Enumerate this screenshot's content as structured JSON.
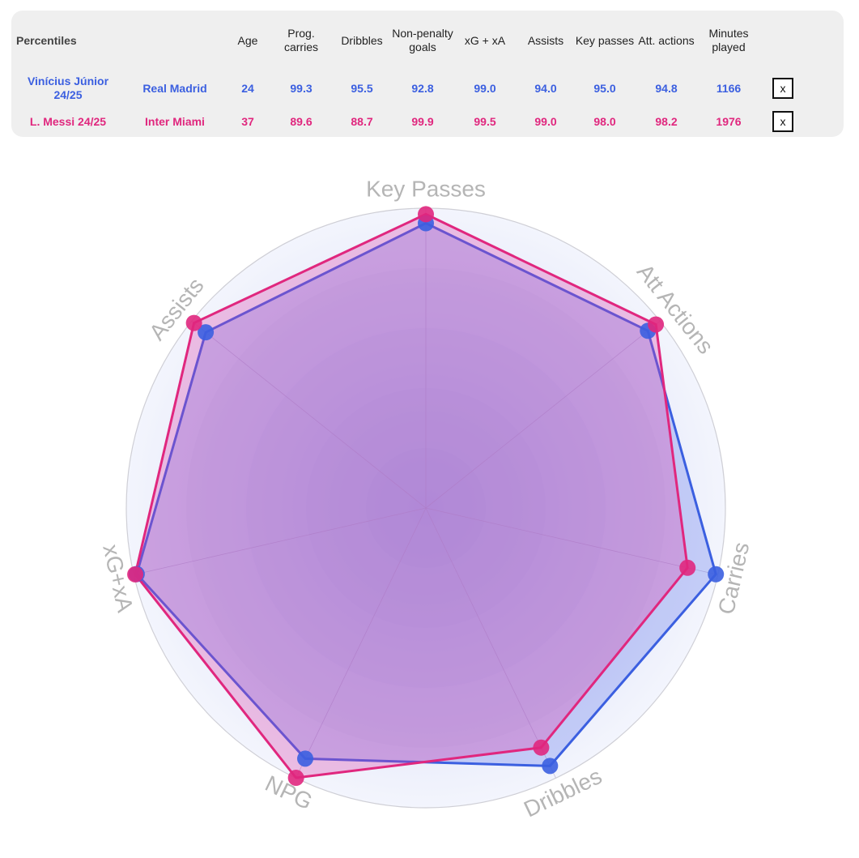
{
  "table": {
    "headers": [
      "Percentiles",
      "",
      "Age",
      "Prog. carries",
      "Dribbles",
      "Non-penalty goals",
      "xG + xA",
      "Assists",
      "Key passes",
      "Att. actions",
      "Minutes played"
    ],
    "rows": [
      {
        "player": "Vinícius Júnior 24/25",
        "club": "Real Madrid",
        "values": [
          "24",
          "99.3",
          "95.5",
          "92.8",
          "99.0",
          "94.0",
          "95.0",
          "94.8",
          "1166"
        ],
        "remove_label": "x"
      },
      {
        "player": "L. Messi 24/25",
        "club": "Inter Miami",
        "values": [
          "37",
          "89.6",
          "88.7",
          "99.9",
          "99.5",
          "99.0",
          "98.0",
          "98.2",
          "1976"
        ],
        "remove_label": "x"
      }
    ]
  },
  "chart_data": {
    "type": "radar",
    "axes": [
      "Key Passes",
      "Att Actions",
      "Carries",
      "Dribbles",
      "NPG",
      "xG+xA",
      "Assists"
    ],
    "range": [
      0,
      100
    ],
    "series": [
      {
        "name": "Vinícius Júnior 24/25",
        "color": "#3b5fe0",
        "values": [
          95.0,
          94.8,
          99.3,
          95.5,
          92.8,
          99.0,
          94.0
        ]
      },
      {
        "name": "L. Messi 24/25",
        "color": "#e0277e",
        "values": [
          98.0,
          98.2,
          89.6,
          88.7,
          99.9,
          99.5,
          99.0
        ]
      }
    ]
  }
}
